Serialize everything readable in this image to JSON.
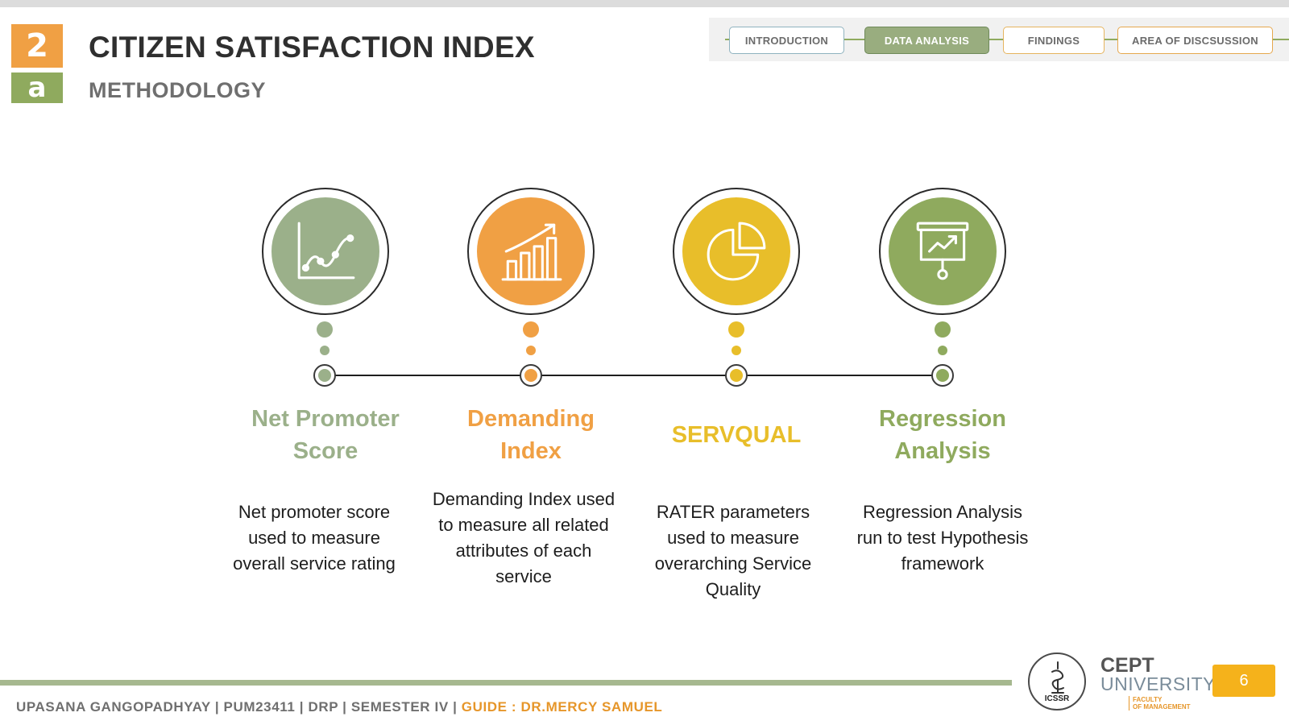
{
  "header": {
    "section_number": "2",
    "section_letter": "a",
    "title": "CITIZEN SATISFACTION INDEX",
    "subtitle": "METHODOLOGY"
  },
  "nav": {
    "items": [
      {
        "label": "INTRODUCTION"
      },
      {
        "label": "DATA ANALYSIS",
        "active": true
      },
      {
        "label": "FINDINGS"
      },
      {
        "label": "AREA OF DISCSUSSION"
      }
    ]
  },
  "steps": [
    {
      "title": "Net Promoter Score",
      "description": "Net promoter score used to measure overall service rating",
      "color": "#9bb08a",
      "icon": "line-chart-icon"
    },
    {
      "title": "Demanding Index",
      "description": "Demanding Index used to measure all related attributes of each service",
      "color": "#f0a044",
      "icon": "bar-chart-growth-icon"
    },
    {
      "title": "SERVQUAL",
      "description": "RATER parameters used to measure overarching Service Quality",
      "color": "#e8be2a",
      "icon": "pie-chart-icon"
    },
    {
      "title": "Regression Analysis",
      "description": "Regression Analysis run to test Hypothesis framework",
      "color": "#8faa5e",
      "icon": "presentation-board-icon"
    }
  ],
  "footer": {
    "author_info": "UPASANA GANGOPADHYAY | PUM23411 | DRP | SEMESTER IV | ",
    "guide": "GUIDE : DR.MERCY SAMUEL",
    "icssr_label": "ICSSR",
    "university_name_line1": "CEPT",
    "university_name_line2": "UNIVERSITY",
    "faculty_line1": "FACULTY",
    "faculty_line2": "OF MANAGEMENT",
    "page_number": "6"
  },
  "colors": {
    "orange": "#f0a044",
    "olive_green": "#8faa5e",
    "sage": "#9bb08a",
    "yellow": "#e8be2a",
    "page_badge": "#f5b21b"
  }
}
